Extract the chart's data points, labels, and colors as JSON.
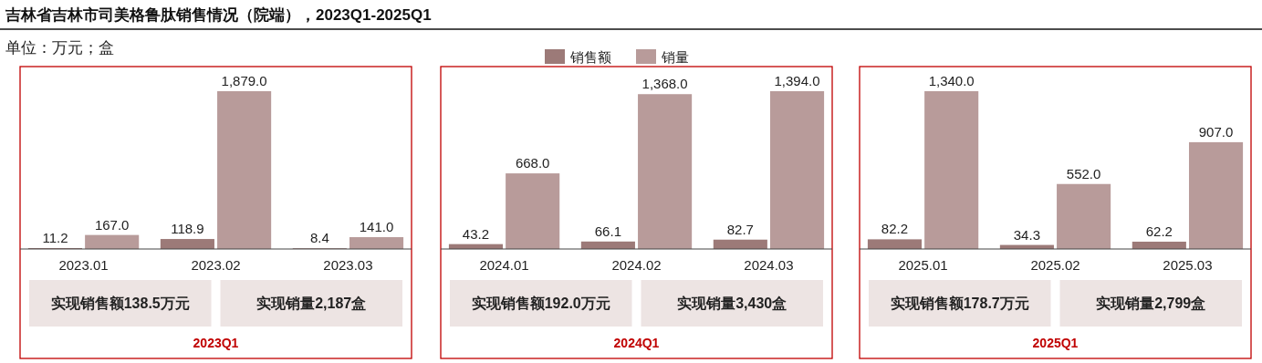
{
  "chart_data": [
    {
      "type": "bar",
      "title": "吉林省吉林市司美格鲁肽销售情况（院端），2023Q1-2025Q1",
      "subtitle": "单位：万元；盒",
      "categories": [
        "2023.01",
        "2023.02",
        "2023.03"
      ],
      "series": [
        {
          "color": "#9c7a78",
          "values": [
            11.2,
            118.9,
            8.4
          ],
          "value_labels": [
            "11.2",
            "118.9",
            "8.4"
          ]
        },
        {
          "color": "#b89b9a",
          "values": [
            167.0,
            1879.0,
            141.0
          ],
          "value_labels": [
            "167.0",
            "1,879.0",
            "141.0"
          ]
        }
      ],
      "annotations": [
        "实现销售额138.5万元",
        "实现销量2,187盒"
      ],
      "xlabel": "2023Q1",
      "legend": false
    },
    {
      "type": "bar",
      "categories": [
        "2024.01",
        "2024.02",
        "2024.03"
      ],
      "series": [
        {
          "name": "销售额",
          "color": "#9c7a78",
          "values": [
            43.2,
            66.1,
            82.7
          ],
          "value_labels": [
            "43.2",
            "66.1",
            "82.7"
          ]
        },
        {
          "name": "销量",
          "color": "#b89b9a",
          "values": [
            668.0,
            1368.0,
            1394.0
          ],
          "value_labels": [
            "668.0",
            "1,368.0",
            "1,394.0"
          ]
        }
      ],
      "annotations": [
        "实现销售额192.0万元",
        "实现销量3,430盒"
      ],
      "xlabel": "2024Q1",
      "legend": "top"
    },
    {
      "type": "bar",
      "categories": [
        "2025.01",
        "2025.02",
        "2025.03"
      ],
      "series": [
        {
          "color": "#9c7a78",
          "values": [
            82.2,
            34.3,
            62.2
          ],
          "value_labels": [
            "82.2",
            "34.3",
            "62.2"
          ]
        },
        {
          "color": "#b89b9a",
          "values": [
            1340.0,
            552.0,
            907.0
          ],
          "value_labels": [
            "1,340.0",
            "552.0",
            "907.0"
          ]
        }
      ],
      "annotations": [
        "实现销售额178.7万元",
        "实现销量2,799盒"
      ],
      "xlabel": "2025Q1",
      "legend": false
    }
  ]
}
